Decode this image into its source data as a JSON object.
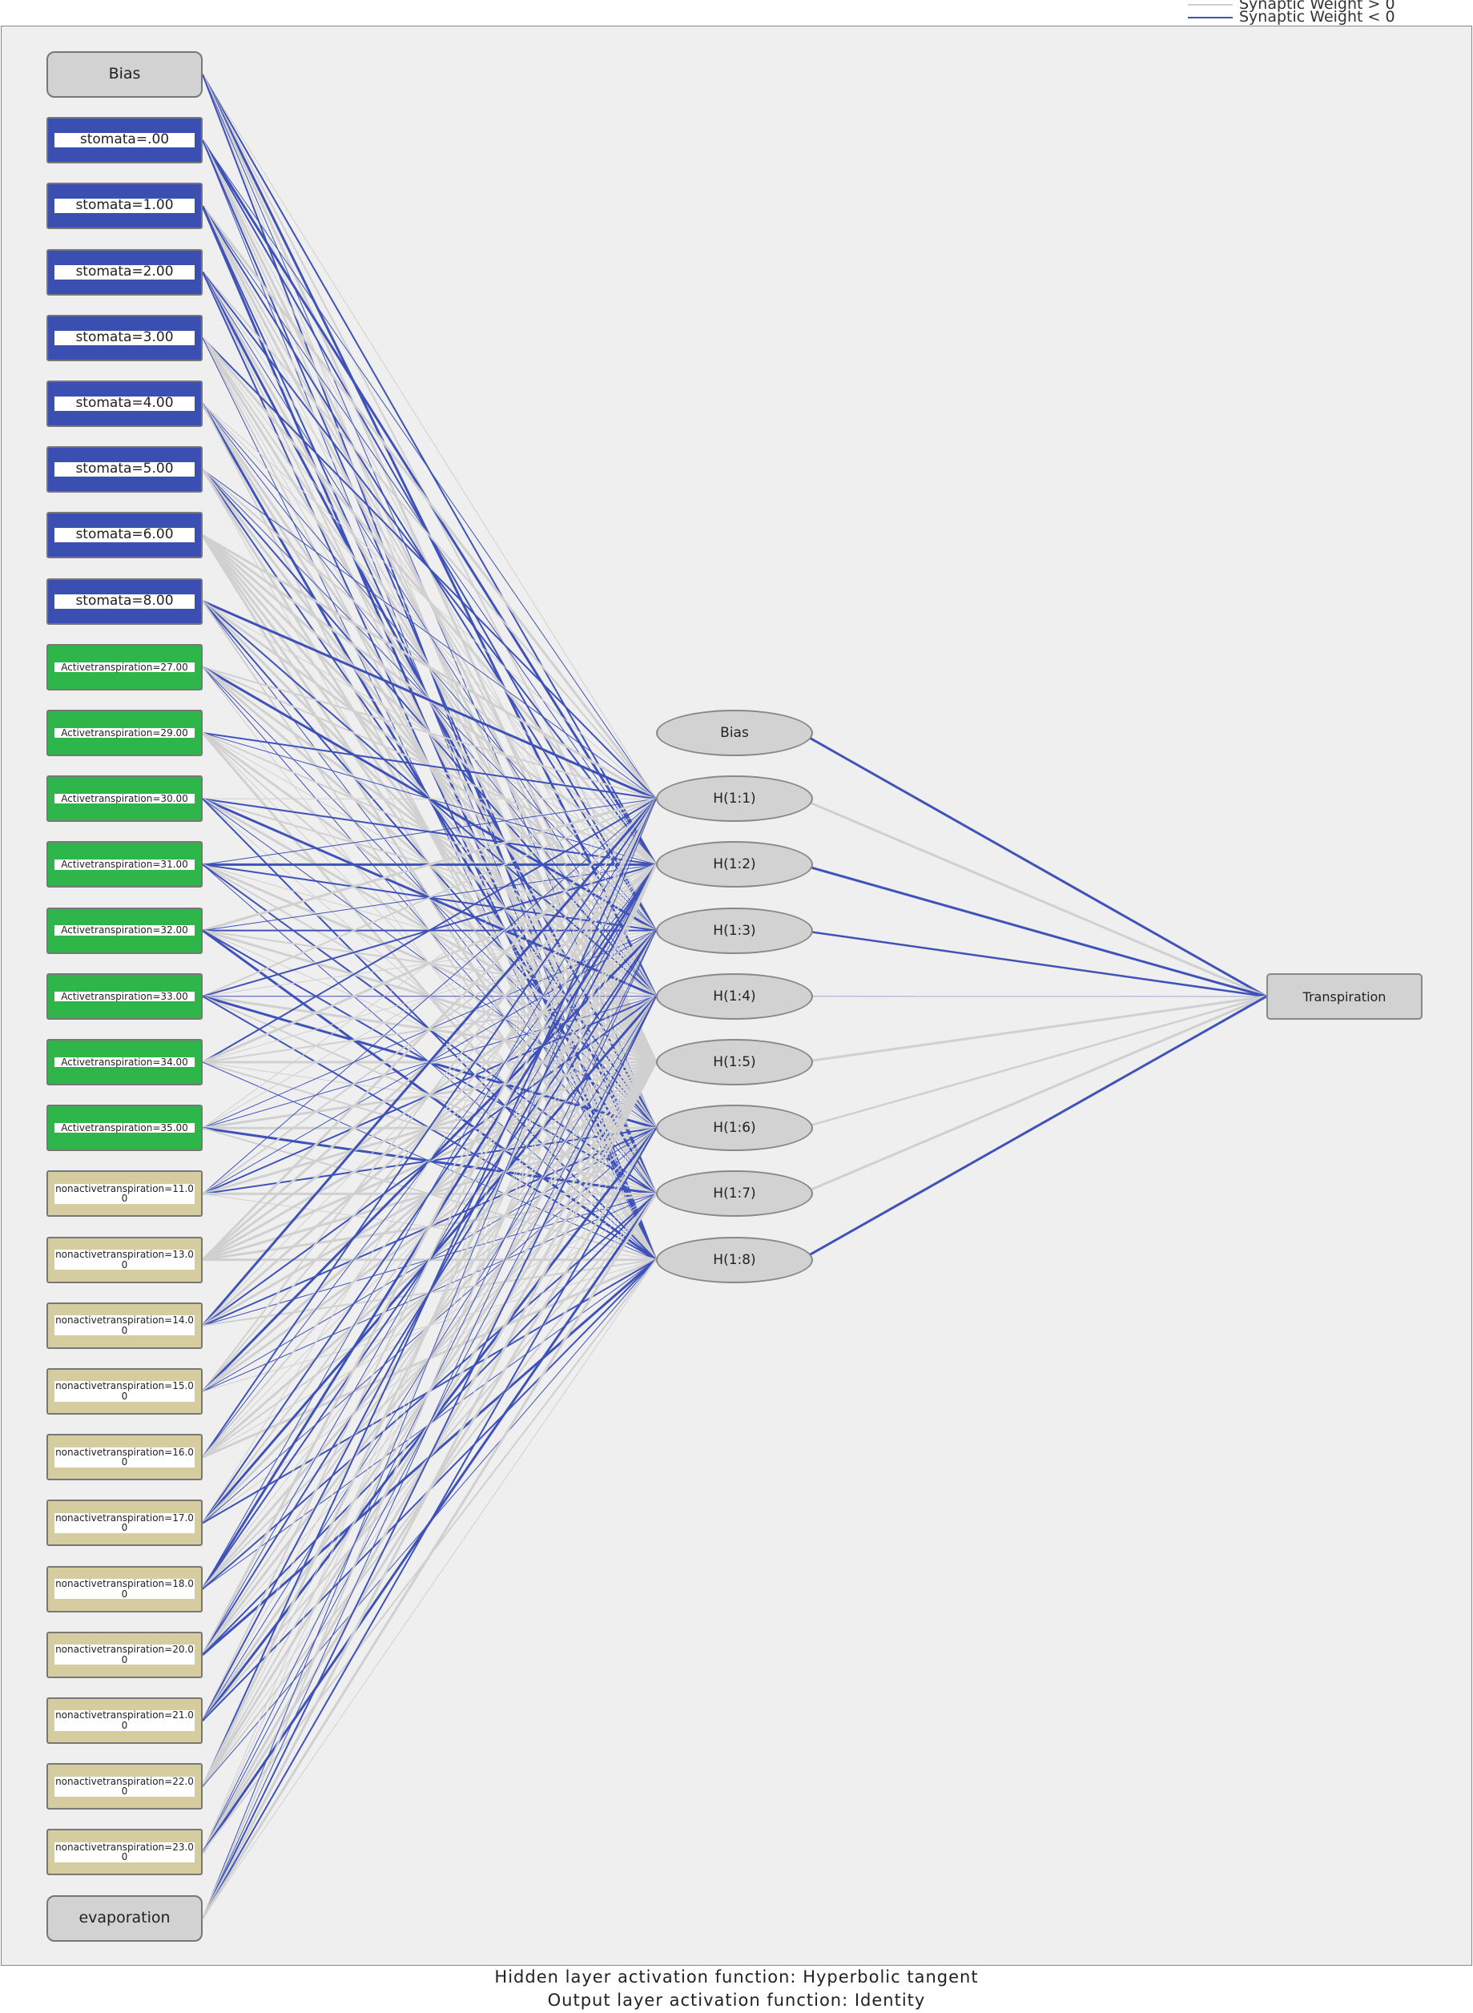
{
  "legend": {
    "positive": "Synaptic Weight > 0",
    "negative": "Synaptic Weight < 0"
  },
  "input_layer": {
    "nodes": [
      {
        "label": "Bias",
        "fill": "#d2d2d2"
      },
      {
        "label": "stomata=.00",
        "fill": "#3b4fb2"
      },
      {
        "label": "stomata=1.00",
        "fill": "#3b4fb2"
      },
      {
        "label": "stomata=2.00",
        "fill": "#3b4fb2"
      },
      {
        "label": "stomata=3.00",
        "fill": "#3b4fb2"
      },
      {
        "label": "stomata=4.00",
        "fill": "#3b4fb2"
      },
      {
        "label": "stomata=5.00",
        "fill": "#3b4fb2"
      },
      {
        "label": "stomata=6.00",
        "fill": "#3b4fb2"
      },
      {
        "label": "stomata=8.00",
        "fill": "#3b4fb2"
      },
      {
        "label": "Activetranspiration=27.00",
        "fill": "#2fb64b"
      },
      {
        "label": "Activetranspiration=29.00",
        "fill": "#2fb64b"
      },
      {
        "label": "Activetranspiration=30.00",
        "fill": "#2fb64b"
      },
      {
        "label": "Activetranspiration=31.00",
        "fill": "#2fb64b"
      },
      {
        "label": "Activetranspiration=32.00",
        "fill": "#2fb64b"
      },
      {
        "label": "Activetranspiration=33.00",
        "fill": "#2fb64b"
      },
      {
        "label": "Activetranspiration=34.00",
        "fill": "#2fb64b"
      },
      {
        "label": "Activetranspiration=35.00",
        "fill": "#2fb64b"
      },
      {
        "label": "nonactivetranspiration=11.00",
        "fill": "#d5cd9f"
      },
      {
        "label": "nonactivetranspiration=13.00",
        "fill": "#d5cd9f"
      },
      {
        "label": "nonactivetranspiration=14.00",
        "fill": "#d5cd9f"
      },
      {
        "label": "nonactivetranspiration=15.00",
        "fill": "#d5cd9f"
      },
      {
        "label": "nonactivetranspiration=16.00",
        "fill": "#d5cd9f"
      },
      {
        "label": "nonactivetranspiration=17.00",
        "fill": "#d5cd9f"
      },
      {
        "label": "nonactivetranspiration=18.00",
        "fill": "#d5cd9f"
      },
      {
        "label": "nonactivetranspiration=20.00",
        "fill": "#d5cd9f"
      },
      {
        "label": "nonactivetranspiration=21.00",
        "fill": "#d5cd9f"
      },
      {
        "label": "nonactivetranspiration=22.00",
        "fill": "#d5cd9f"
      },
      {
        "label": "nonactivetranspiration=23.00",
        "fill": "#d5cd9f"
      },
      {
        "label": "evaporation",
        "fill": "#d2d2d2"
      }
    ]
  },
  "hidden_layer": {
    "nodes": [
      {
        "label": "Bias"
      },
      {
        "label": "H(1:1)"
      },
      {
        "label": "H(1:2)"
      },
      {
        "label": "H(1:3)"
      },
      {
        "label": "H(1:4)"
      },
      {
        "label": "H(1:5)"
      },
      {
        "label": "H(1:6)"
      },
      {
        "label": "H(1:7)"
      },
      {
        "label": "H(1:8)"
      }
    ]
  },
  "output_layer": {
    "nodes": [
      {
        "label": "Transpiration"
      }
    ]
  },
  "footer": {
    "hidden_activation": "Hidden layer activation function: Hyperbolic tangent",
    "output_activation": "Output layer activation function: Identity"
  }
}
